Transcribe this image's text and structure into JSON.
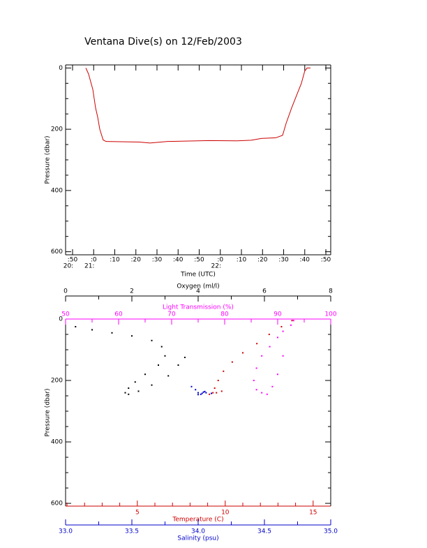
{
  "chart_data": [
    {
      "type": "line",
      "title": "Ventana Dive(s) on 12/Feb/2003",
      "xlabel": "Time (UTC)",
      "ylabel": "Pressure (dbar)",
      "xlim": [
        46.7,
        172.3
      ],
      "xticks": [
        {
          "value": 50,
          "label": ":50"
        },
        {
          "value": 60,
          "label": ":0"
        },
        {
          "value": 70,
          "label": ":10"
        },
        {
          "value": 80,
          "label": ":20"
        },
        {
          "value": 90,
          "label": ":30"
        },
        {
          "value": 100,
          "label": ":40"
        },
        {
          "value": 110,
          "label": ":50"
        },
        {
          "value": 120,
          "label": ":0"
        },
        {
          "value": 130,
          "label": ":10"
        },
        {
          "value": 140,
          "label": ":20"
        },
        {
          "value": 150,
          "label": ":30"
        },
        {
          "value": 160,
          "label": ":40"
        },
        {
          "value": 170,
          "label": ":50"
        }
      ],
      "xhour_labels": [
        {
          "value": 50,
          "label": "20:"
        },
        {
          "value": 60,
          "label": "21:"
        },
        {
          "value": 120,
          "label": "22:"
        }
      ],
      "ylim": [
        610,
        -10
      ],
      "yticks": [
        0,
        200,
        400,
        600
      ],
      "yminorticks": [
        50,
        100,
        150,
        250,
        300,
        350,
        450,
        500,
        550
      ],
      "series": [
        {
          "color": "#cc0000",
          "x": [
            56.3,
            57.6,
            59.6,
            60.9,
            61.9,
            62.9,
            64.5,
            65.9,
            81.7,
            86.7,
            95,
            114.8,
            128,
            134.6,
            139.6,
            146.2,
            149.5,
            151.2,
            153.8,
            156.1,
            158.4,
            160,
            161.1,
            162.7
          ],
          "y": [
            0,
            20,
            70,
            130,
            160,
            200,
            235,
            240,
            242,
            245,
            240,
            237,
            238,
            236,
            230,
            228,
            220,
            180,
            130,
            90,
            50,
            10,
            0,
            0
          ]
        }
      ]
    },
    {
      "type": "scatter",
      "ylabel": "Pressure (dbar)",
      "ylim": [
        609,
        0
      ],
      "yticks": [
        0,
        200,
        400,
        600
      ],
      "yminorticks": [
        50,
        100,
        150,
        250,
        300,
        350,
        450,
        500,
        550
      ],
      "axes": [
        {
          "label": "Oxygen (ml/l)",
          "lim": [
            0,
            8
          ],
          "ticks": [
            0,
            2,
            4,
            6,
            8
          ],
          "minorticks": [
            1,
            3,
            5,
            7
          ],
          "color": "#000000",
          "position": "top"
        },
        {
          "label": "Light Transmission (%)",
          "lim": [
            50,
            100
          ],
          "ticks": [
            50,
            60,
            70,
            80,
            90,
            100
          ],
          "minorticks": [
            55,
            65,
            75,
            85,
            95
          ],
          "color": "#ff00ff",
          "position": "top"
        },
        {
          "label": "Temperature (C)",
          "lim": [
            0.92,
            16.0
          ],
          "ticks": [
            5,
            10,
            15
          ],
          "minorticks": [
            1,
            2,
            3,
            4,
            6,
            7,
            8,
            9,
            11,
            12,
            13,
            14
          ],
          "color": "#cc0000",
          "position": "bottom"
        },
        {
          "label": "Salinity (psu)",
          "lim": [
            33,
            35
          ],
          "ticks": [
            {
              "value": 33,
              "label": "33.0"
            },
            {
              "value": 33.5,
              "label": "33.5"
            },
            {
              "value": 34,
              "label": "34.0"
            },
            {
              "value": 34.5,
              "label": "34.5"
            },
            {
              "value": 35,
              "label": "35.0"
            }
          ],
          "minorticks": [
            33.25,
            33.75,
            34.25,
            34.75
          ],
          "color": "#0000cc",
          "position": "bottom"
        }
      ],
      "series": [
        {
          "axis": 0,
          "color": "#000000",
          "x": [
            0.3,
            0.8,
            1.4,
            2.0,
            2.6,
            2.9,
            3.0,
            2.8,
            2.4,
            2.1,
            1.9,
            1.8,
            1.9,
            2.2,
            2.6,
            3.1,
            3.4,
            3.6
          ],
          "y": [
            25,
            35,
            45,
            55,
            70,
            90,
            120,
            150,
            180,
            205,
            225,
            240,
            245,
            235,
            215,
            185,
            150,
            125
          ]
        },
        {
          "axis": 1,
          "color": "#ff00ff",
          "x": [
            93,
            92.5,
            91,
            90,
            88.5,
            87,
            86,
            85.5,
            86,
            87,
            88,
            89,
            90,
            91
          ],
          "y": [
            5,
            20,
            40,
            60,
            90,
            120,
            160,
            200,
            230,
            240,
            245,
            220,
            180,
            120
          ]
        },
        {
          "axis": 2,
          "color": "#cc0000",
          "x": [
            13.8,
            13.2,
            12.5,
            11.8,
            11.0,
            10.4,
            9.9,
            9.6,
            9.4,
            9.3,
            9.1,
            9.5,
            9.8
          ],
          "y": [
            5,
            25,
            50,
            80,
            110,
            140,
            170,
            200,
            225,
            240,
            245,
            240,
            235
          ]
        },
        {
          "axis": 3,
          "color": "#0000cc",
          "x": [
            33.95,
            33.98,
            34.0,
            34.02,
            34.03,
            34.04,
            34.05,
            34.06,
            34.1,
            34.0
          ],
          "y": [
            220,
            230,
            240,
            245,
            242,
            238,
            236,
            240,
            242,
            246
          ]
        }
      ]
    }
  ]
}
